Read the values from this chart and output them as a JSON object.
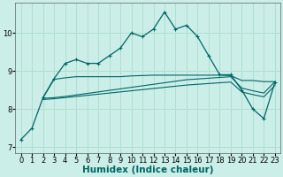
{
  "xlabel": "Humidex (Indice chaleur)",
  "background_color": "#cceee8",
  "grid_color": "#aaddcc",
  "line1_x": [
    0,
    1,
    2,
    3,
    4,
    5,
    6,
    7,
    8,
    9,
    10,
    11,
    12,
    13,
    14,
    15,
    16,
    17,
    18,
    19,
    20,
    21,
    22,
    23
  ],
  "line1_y": [
    7.2,
    7.5,
    8.3,
    8.8,
    9.2,
    9.3,
    9.2,
    9.2,
    9.4,
    9.6,
    10.0,
    9.9,
    10.1,
    10.55,
    10.1,
    10.2,
    9.9,
    9.4,
    8.9,
    8.9,
    8.5,
    8.0,
    7.75,
    8.7
  ],
  "line2_x": [
    2,
    3,
    4,
    5,
    6,
    7,
    8,
    9,
    10,
    11,
    12,
    13,
    14,
    15,
    16,
    17,
    18,
    19,
    20,
    21,
    22,
    23
  ],
  "line2_y": [
    8.3,
    8.78,
    8.82,
    8.85,
    8.85,
    8.85,
    8.85,
    8.85,
    8.87,
    8.88,
    8.89,
    8.89,
    8.89,
    8.89,
    8.89,
    8.89,
    8.89,
    8.88,
    8.75,
    8.75,
    8.72,
    8.72
  ],
  "line3_x": [
    2,
    3,
    4,
    5,
    6,
    7,
    8,
    9,
    10,
    11,
    12,
    13,
    14,
    15,
    16,
    17,
    18,
    19,
    20,
    21,
    22,
    23
  ],
  "line3_y": [
    8.28,
    8.3,
    8.33,
    8.37,
    8.41,
    8.45,
    8.49,
    8.53,
    8.57,
    8.61,
    8.65,
    8.69,
    8.73,
    8.77,
    8.79,
    8.81,
    8.83,
    8.85,
    8.55,
    8.48,
    8.42,
    8.72
  ],
  "line4_x": [
    2,
    3,
    4,
    5,
    6,
    7,
    8,
    9,
    10,
    11,
    12,
    13,
    14,
    15,
    16,
    17,
    18,
    19,
    20,
    21,
    22,
    23
  ],
  "line4_y": [
    8.25,
    8.27,
    8.3,
    8.33,
    8.36,
    8.39,
    8.42,
    8.45,
    8.48,
    8.51,
    8.54,
    8.57,
    8.6,
    8.63,
    8.65,
    8.67,
    8.69,
    8.71,
    8.45,
    8.38,
    8.32,
    8.62
  ],
  "line_color": "#006666",
  "marker_style": "+",
  "xlim": [
    -0.5,
    23.5
  ],
  "ylim": [
    6.85,
    10.8
  ],
  "xticks": [
    0,
    1,
    2,
    3,
    4,
    5,
    6,
    7,
    8,
    9,
    10,
    11,
    12,
    13,
    14,
    15,
    16,
    17,
    18,
    19,
    20,
    21,
    22,
    23
  ],
  "yticks": [
    7,
    8,
    9,
    10
  ],
  "tick_fontsize": 6,
  "label_fontsize": 7.5
}
